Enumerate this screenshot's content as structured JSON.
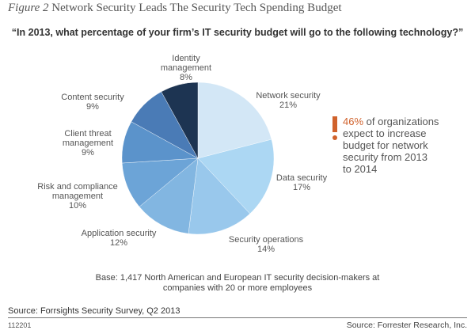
{
  "figure": {
    "number": "Figure 2",
    "title": "Network Security Leads The Security Tech Spending Budget"
  },
  "chart_data": {
    "type": "pie",
    "title": "“In 2013, what percentage of your firm’s IT security budget will go to the following technology?”",
    "start": "12 o'clock",
    "direction": "clockwise",
    "slices": [
      {
        "label": "Network security",
        "value": 21,
        "display": "21%",
        "color": "#d3e7f6"
      },
      {
        "label": "Data security",
        "value": 17,
        "display": "17%",
        "color": "#acd7f3"
      },
      {
        "label": "Security operations",
        "value": 14,
        "display": "14%",
        "color": "#99c8ec"
      },
      {
        "label": "Application security",
        "value": 12,
        "display": "12%",
        "color": "#82b6e1"
      },
      {
        "label": "Risk and compliance management",
        "value": 10,
        "display": "10%",
        "color": "#6ca4d7"
      },
      {
        "label": "Client threat management",
        "value": 9,
        "display": "9%",
        "color": "#5b93cb"
      },
      {
        "label": "Content security",
        "value": 9,
        "display": "9%",
        "color": "#4a7bb6"
      },
      {
        "label": "Identity management",
        "value": 8,
        "display": "8%",
        "color": "#1d3452"
      }
    ]
  },
  "labels": {
    "network": [
      "Network security",
      "21%"
    ],
    "data": [
      "Data security",
      "17%"
    ],
    "secops": [
      "Security operations",
      "14%"
    ],
    "app": [
      "Application security",
      "12%"
    ],
    "risk": [
      "Risk and compliance",
      "management",
      "10%"
    ],
    "client": [
      "Client threat",
      "management",
      "9%"
    ],
    "content": [
      "Content security",
      "9%"
    ],
    "identity": [
      "Identity",
      "management",
      "8%"
    ]
  },
  "callout": {
    "highlight": "46%",
    "lines": [
      " of organizations",
      "expect to increase",
      "budget for network",
      "security from 2013",
      "to 2014"
    ],
    "accent_color": "#d0622c"
  },
  "base": {
    "line1": "Base: 1,417 North American and European IT security decision-makers at",
    "line2": "companies with 20 or more employees"
  },
  "footer": {
    "source": "Source: Forrsights Security Survey, Q2 2013",
    "figure_id": "112201",
    "publisher": "Source: Forrester Research, Inc."
  }
}
